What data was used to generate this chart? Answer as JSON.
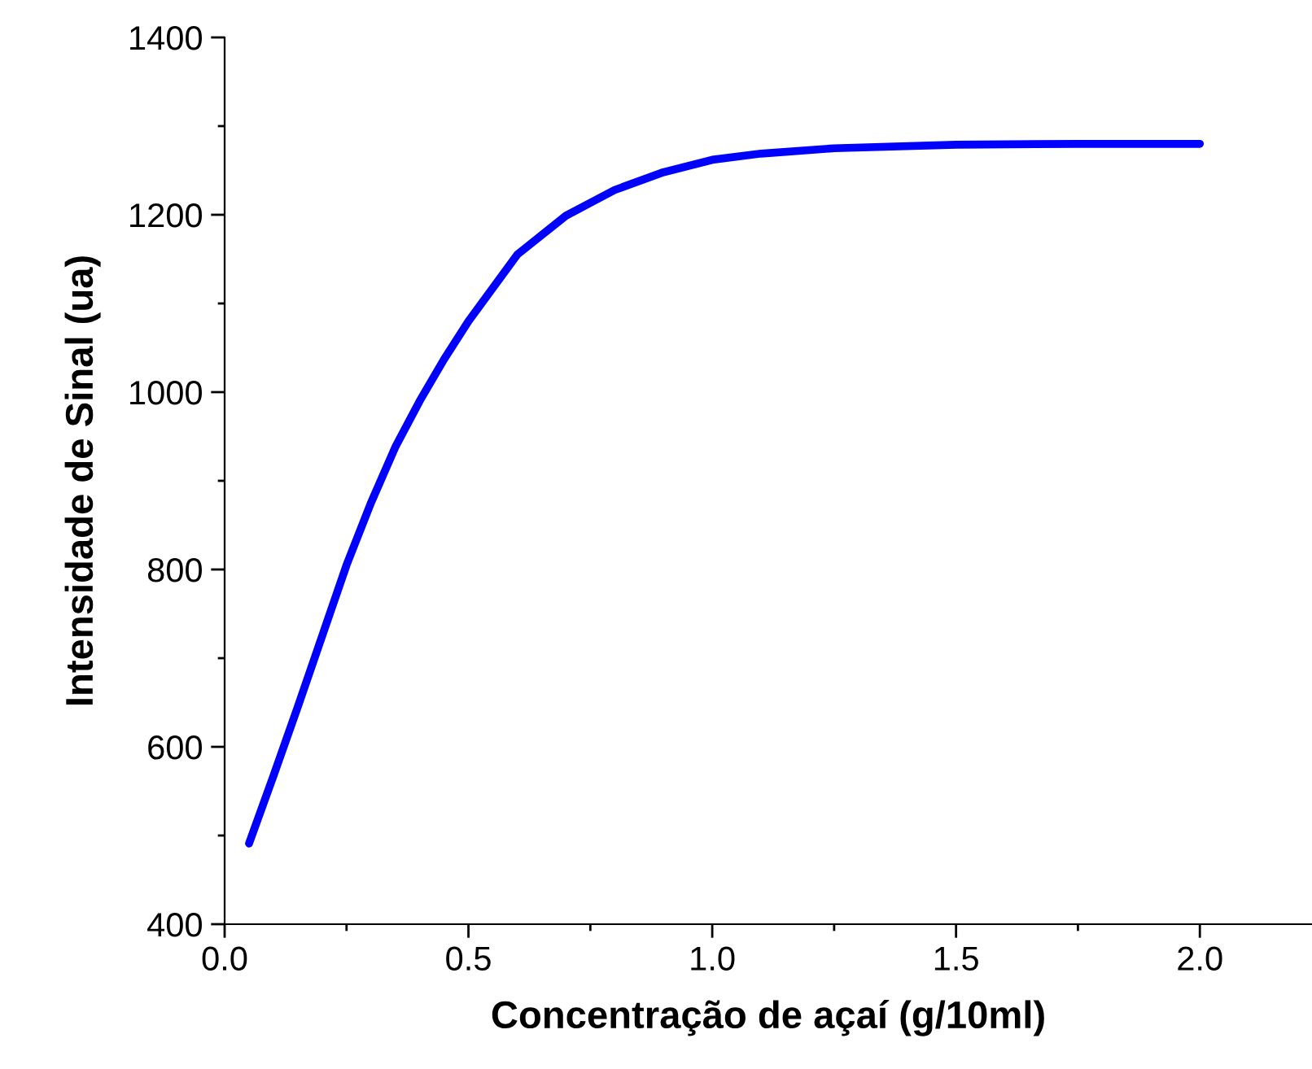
{
  "chart_data": {
    "type": "line",
    "xlabel": "Concentração de açaí (g/10ml)",
    "ylabel": "Intensidade de Sinal (ua)",
    "x": [
      0.05,
      0.1,
      0.15,
      0.2,
      0.25,
      0.3,
      0.35,
      0.4,
      0.45,
      0.5,
      0.6,
      0.7,
      0.8,
      0.9,
      1.0,
      1.1,
      1.25,
      1.5,
      1.75,
      2.0
    ],
    "series": [
      {
        "color": "#0000ff",
        "values": [
          491,
          567,
          645,
          725,
          805,
          875,
          938,
          990,
          1037,
          1080,
          1155,
          1199,
          1228,
          1248,
          1262,
          1269,
          1275,
          1279,
          1280,
          1280
        ]
      }
    ],
    "xlim": [
      0,
      2.23
    ],
    "xticks": [
      {
        "value": 0,
        "label": "0.0"
      },
      0.5,
      {
        "value": 1,
        "label": "1.0"
      },
      1.5,
      {
        "value": 2,
        "label": "2.0"
      }
    ],
    "ylim": [
      400,
      1400
    ],
    "yticks": [
      400,
      600,
      800,
      1000,
      1200,
      1400
    ],
    "grid": false,
    "legend": false,
    "marker": "none",
    "line_style": "solid"
  }
}
